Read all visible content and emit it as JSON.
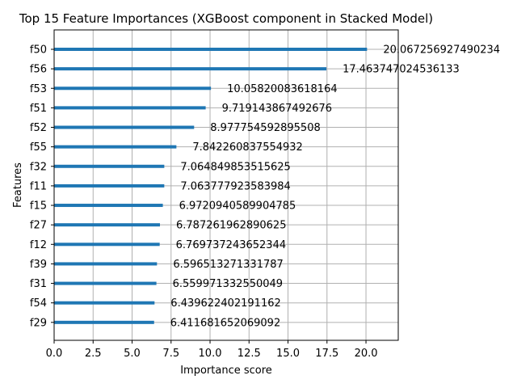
{
  "chart_data": {
    "type": "bar",
    "orientation": "horizontal",
    "title": "Top 15 Feature Importances (XGBoost component in Stacked Model)",
    "xlabel": "Importance score",
    "ylabel": "Features",
    "xlim": [
      0,
      22.07
    ],
    "xticks": [
      "0.0",
      "2.5",
      "5.0",
      "7.5",
      "10.0",
      "12.5",
      "15.0",
      "17.5",
      "20.0"
    ],
    "grid": true,
    "bar_color": "#1f77b4",
    "categories": [
      "f50",
      "f56",
      "f53",
      "f51",
      "f52",
      "f55",
      "f32",
      "f11",
      "f15",
      "f27",
      "f12",
      "f39",
      "f31",
      "f54",
      "f29"
    ],
    "values": [
      20.067256927490234,
      17.463747024536133,
      10.05820083618164,
      9.719143867492676,
      8.977754592895508,
      7.842260837554932,
      7.064849853515625,
      7.063777923583984,
      6.9720940589904785,
      6.787261962890625,
      6.769737243652344,
      6.596513271331787,
      6.559971332550049,
      6.439622402191162,
      6.411681652069092
    ],
    "value_labels": [
      "20.067256927490234",
      "17.463747024536133",
      "10.05820083618164",
      "9.719143867492676",
      "8.977754592895508",
      "7.842260837554932",
      "7.064849853515625",
      "7.063777923583984",
      "6.9720940589904785",
      "6.787261962890625",
      "6.769737243652344",
      "6.596513271331787",
      "6.559971332550049",
      "6.439622402191162",
      "6.411681652069092"
    ]
  }
}
